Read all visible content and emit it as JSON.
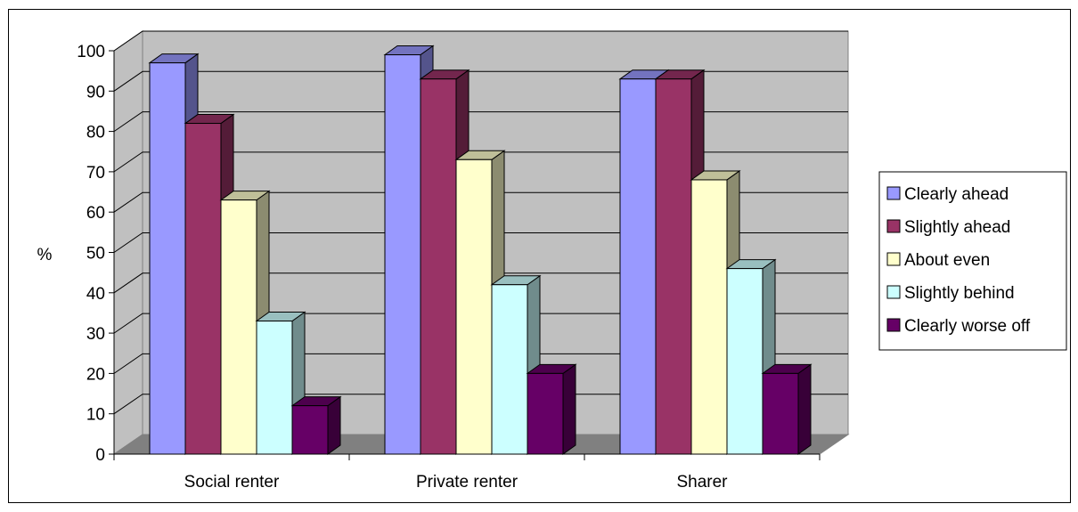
{
  "chart_data": {
    "type": "bar",
    "style": "3d-clustered",
    "categories": [
      "Social renter",
      "Private renter",
      "Sharer"
    ],
    "ylabel": "%",
    "xlabel": "",
    "ylim": [
      0,
      100
    ],
    "yticks": [
      0,
      10,
      20,
      30,
      40,
      50,
      60,
      70,
      80,
      90,
      100
    ],
    "grid": true,
    "legend_position": "right",
    "series": [
      {
        "name": "Clearly ahead",
        "values": [
          97,
          99,
          93
        ],
        "color": "#9999ff"
      },
      {
        "name": "Slightly ahead",
        "values": [
          82,
          93,
          93
        ],
        "color": "#993366"
      },
      {
        "name": "About even",
        "values": [
          63,
          73,
          68
        ],
        "color": "#ffffcc"
      },
      {
        "name": "Slightly behind",
        "values": [
          33,
          42,
          46
        ],
        "color": "#ccffff"
      },
      {
        "name": "Clearly worse off",
        "values": [
          12,
          20,
          20
        ],
        "color": "#660066"
      }
    ],
    "wall_color": "#c0c0c0",
    "floor_color": "#808080"
  }
}
